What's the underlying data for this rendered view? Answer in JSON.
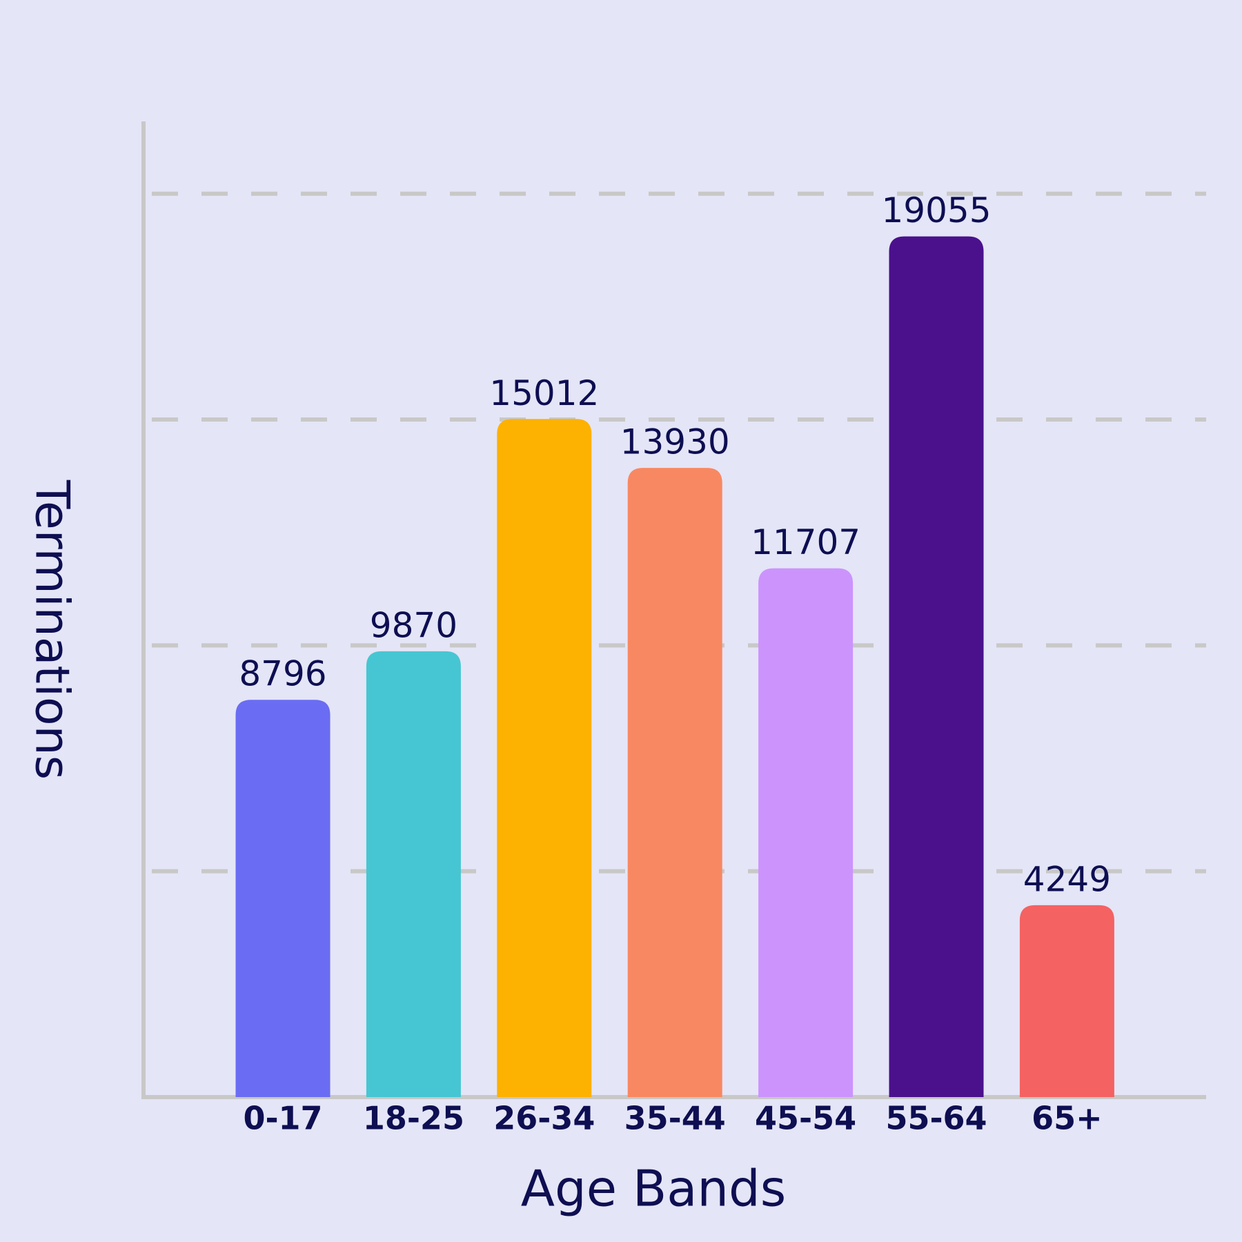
{
  "chart_data": {
    "type": "bar",
    "x_label": "Age Bands",
    "y_label": "Terminations",
    "categories": [
      "0-17",
      "18-25",
      "26-34",
      "35-44",
      "45-54",
      "55-64",
      "65+"
    ],
    "values": [
      8796,
      9870,
      15012,
      13930,
      11707,
      19055,
      4249
    ],
    "colors": [
      "#6a6cf3",
      "#46c6d2",
      "#fdb100",
      "#f88862",
      "#cc93fd",
      "#4b118d",
      "#f46262"
    ],
    "ylim": [
      0,
      21600
    ],
    "yticks": [
      5000,
      10000,
      15000,
      20000
    ],
    "show_ytick_labels": false,
    "grid": true
  }
}
